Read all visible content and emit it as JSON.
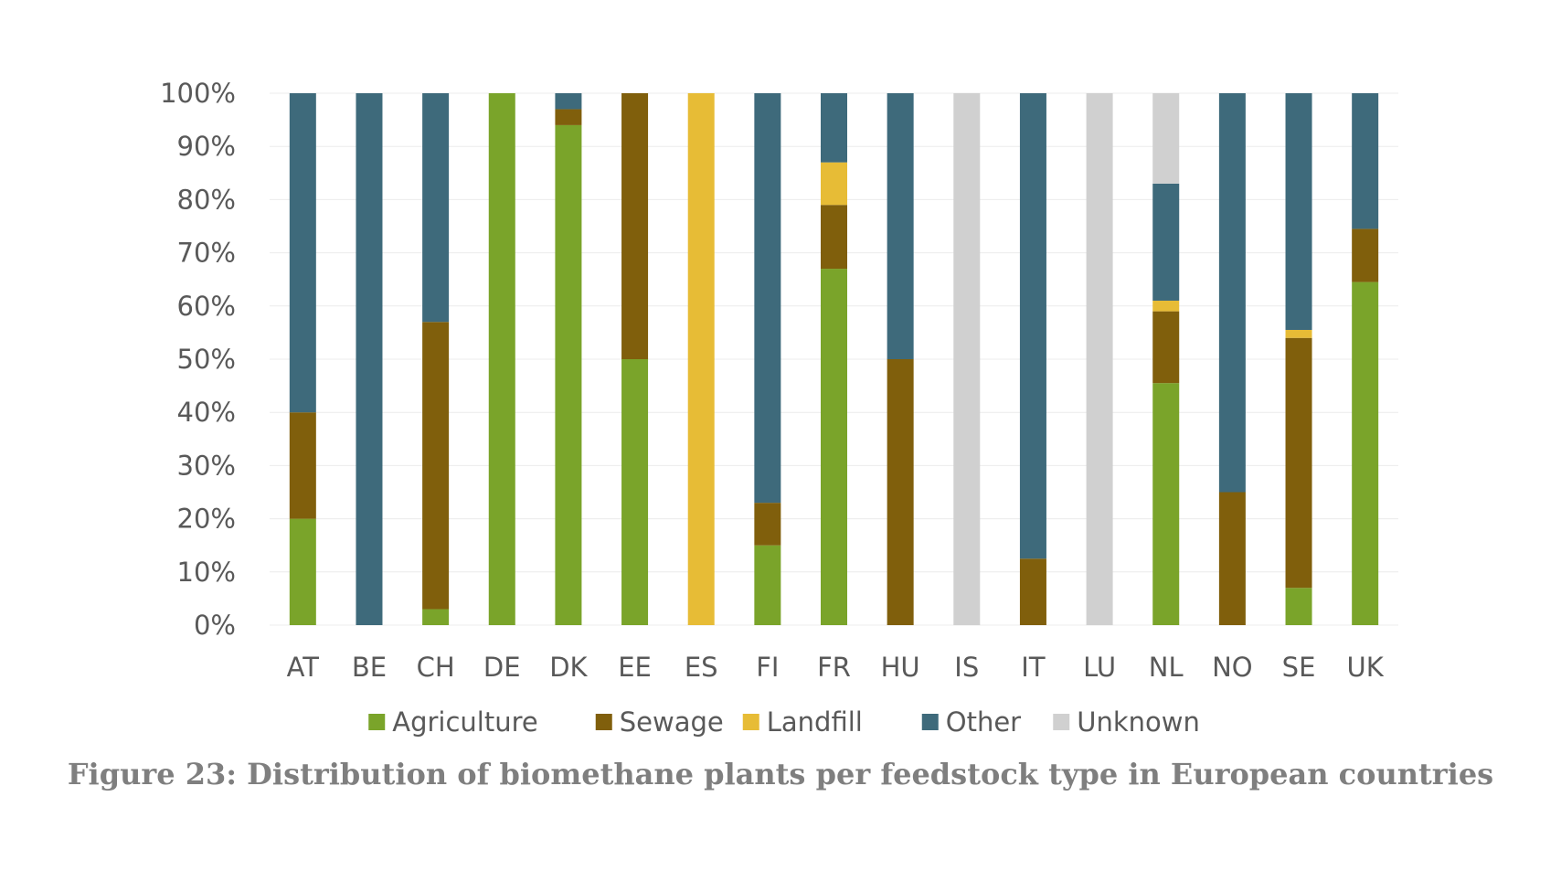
{
  "chart_data": {
    "type": "bar",
    "stacked": true,
    "categories": [
      "AT",
      "BE",
      "CH",
      "DE",
      "DK",
      "EE",
      "ES",
      "FI",
      "FR",
      "HU",
      "IS",
      "IT",
      "LU",
      "NL",
      "NO",
      "SE",
      "UK"
    ],
    "series": [
      {
        "name": "Agriculture",
        "color": "#7aa42a",
        "values": [
          20,
          0,
          3,
          100,
          94,
          50,
          0,
          15,
          67,
          0,
          0,
          0,
          0,
          45.5,
          0,
          7,
          64.5
        ]
      },
      {
        "name": "Sewage",
        "color": "#805f0c",
        "values": [
          20,
          0,
          54,
          0,
          3,
          50,
          0,
          8,
          12,
          50,
          0,
          12.5,
          0,
          13.5,
          25,
          47,
          10
        ]
      },
      {
        "name": "Landfill",
        "color": "#e7bc36",
        "values": [
          0,
          0,
          0,
          0,
          0,
          0,
          100,
          0,
          8,
          0,
          0,
          0,
          0,
          2,
          0,
          1.5,
          0
        ]
      },
      {
        "name": "Other",
        "color": "#3e6a7b",
        "values": [
          60,
          100,
          43,
          0,
          3,
          0,
          0,
          77,
          13,
          50,
          0,
          87.5,
          0,
          22,
          75,
          44.5,
          25.5
        ]
      },
      {
        "name": "Unknown",
        "color": "#d0d0d0",
        "values": [
          0,
          0,
          0,
          0,
          0,
          0,
          0,
          0,
          0,
          0,
          100,
          0,
          100,
          17,
          0,
          0,
          0
        ]
      }
    ],
    "ylim": [
      0,
      100
    ],
    "yticks": [
      "0%",
      "10%",
      "20%",
      "30%",
      "40%",
      "50%",
      "60%",
      "70%",
      "80%",
      "90%",
      "100%"
    ],
    "grid": true,
    "legend_position": "bottom",
    "xlabel": "",
    "ylabel": ""
  },
  "caption": "Figure 23: Distribution of biomethane plants per feedstock type in European countries"
}
